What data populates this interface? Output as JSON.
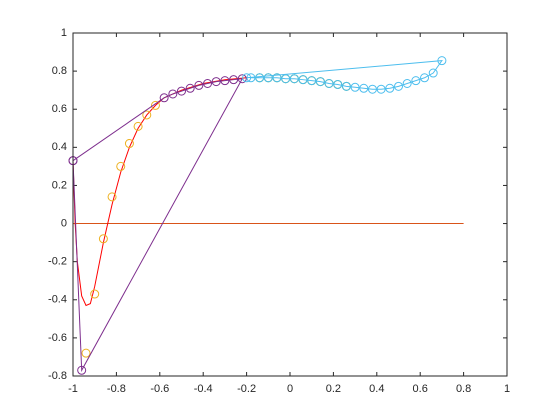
{
  "chart_data": {
    "type": "line",
    "xlim": [
      -1,
      1
    ],
    "ylim": [
      -0.8,
      1
    ],
    "xticks": [
      -1,
      -0.8,
      -0.6,
      -0.4,
      -0.2,
      0,
      0.2,
      0.4,
      0.6,
      0.8,
      1
    ],
    "yticks": [
      -0.8,
      -0.6,
      -0.4,
      -0.2,
      0,
      0.2,
      0.4,
      0.6,
      0.8,
      1
    ],
    "grid": false,
    "series": [
      {
        "color": "#D95319",
        "line": true,
        "marker": false,
        "x": [
          -1,
          0.8
        ],
        "values": [
          0,
          0
        ]
      },
      {
        "color": "#FF0000",
        "line": true,
        "marker": false,
        "x": [
          -1,
          -0.99,
          -0.98,
          -0.96,
          -0.94,
          -0.92,
          -0.9,
          -0.86,
          -0.82,
          -0.78,
          -0.74,
          -0.7,
          -0.66,
          -0.62,
          -0.58,
          -0.5,
          -0.4,
          -0.3,
          -0.2
        ],
        "values": [
          0.33,
          0.0,
          -0.2,
          -0.38,
          -0.43,
          -0.42,
          -0.33,
          -0.1,
          0.1,
          0.27,
          0.4,
          0.5,
          0.57,
          0.62,
          0.66,
          0.7,
          0.735,
          0.755,
          0.765
        ]
      },
      {
        "color": "#EDB120",
        "line": false,
        "marker": true,
        "x": [
          -0.94,
          -0.9,
          -0.86,
          -0.82,
          -0.78,
          -0.74,
          -0.7,
          -0.66,
          -0.62
        ],
        "values": [
          -0.68,
          -0.37,
          -0.08,
          0.14,
          0.3,
          0.42,
          0.51,
          0.57,
          0.62
        ]
      },
      {
        "color": "#77AC30",
        "line": false,
        "marker": true,
        "x": [
          -0.14,
          -0.1,
          -0.06,
          -0.02,
          0.02,
          0.06,
          0.1,
          0.14,
          0.18,
          0.22,
          0.26
        ],
        "values": [
          0.765,
          0.765,
          0.765,
          0.76,
          0.76,
          0.755,
          0.75,
          0.745,
          0.735,
          0.73,
          0.72
        ]
      },
      {
        "color": "#7E2F8E",
        "line": true,
        "marker": true,
        "x": [
          -1,
          -0.58,
          -0.54,
          -0.5,
          -0.46,
          -0.42,
          -0.38,
          -0.34,
          -0.3,
          -0.26,
          -0.22,
          -0.96,
          -1
        ],
        "values": [
          0.33,
          0.66,
          0.68,
          0.695,
          0.71,
          0.725,
          0.735,
          0.745,
          0.75,
          0.755,
          0.76,
          -0.77,
          0.33
        ]
      },
      {
        "color": "#4DBEEE",
        "line": true,
        "marker": true,
        "x": [
          -0.2,
          0.7,
          0.66,
          0.62,
          0.58,
          0.54,
          0.5,
          0.46,
          0.42,
          0.38,
          0.34,
          0.3,
          0.26,
          0.22,
          0.18,
          0.14,
          0.1,
          0.06,
          0.02,
          -0.02,
          -0.06,
          -0.1,
          -0.14,
          -0.18
        ],
        "values": [
          0.765,
          0.855,
          0.79,
          0.765,
          0.75,
          0.735,
          0.72,
          0.71,
          0.705,
          0.705,
          0.71,
          0.715,
          0.72,
          0.73,
          0.735,
          0.745,
          0.75,
          0.755,
          0.76,
          0.76,
          0.765,
          0.765,
          0.765,
          0.765
        ]
      }
    ]
  }
}
